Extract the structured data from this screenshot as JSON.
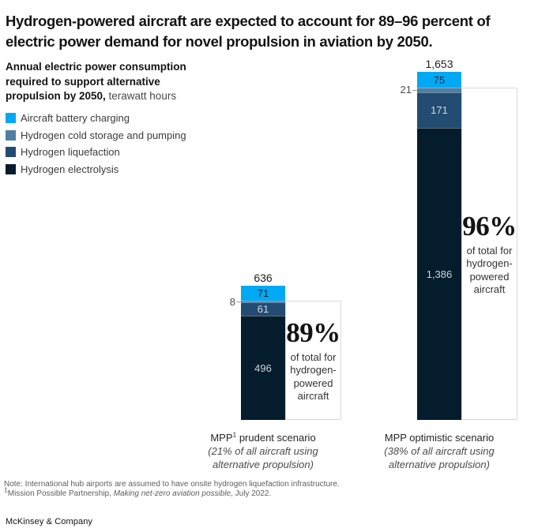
{
  "title_lines": [
    "Hydrogen-powered aircraft are expected to account for 89–96 percent of",
    "electric power demand for novel propulsion in aviation by 2050."
  ],
  "subtitle": {
    "line1": "Annual electric power consumption",
    "line2": "required to support alternative",
    "line3_bold": "propulsion by 2050,",
    "line3_unit": " terawatt hours"
  },
  "legend": [
    {
      "label": "Aircraft battery charging",
      "color": "#00A9F4"
    },
    {
      "label": "Hydrogen cold storage and pumping",
      "color": "#4E7FA7"
    },
    {
      "label": "Hydrogen liquefaction",
      "color": "#234C72"
    },
    {
      "label": "Hydrogen electrolysis",
      "color": "#051C2C"
    }
  ],
  "chart_data": {
    "type": "bar",
    "stacked": true,
    "title": "Annual electric power consumption required to support alternative propulsion by 2050",
    "ylabel": "terawatt hours",
    "categories": [
      "MPP prudent scenario",
      "MPP optimistic scenario"
    ],
    "series": [
      {
        "name": "Aircraft battery charging",
        "values": [
          71,
          75
        ]
      },
      {
        "name": "Hydrogen cold storage and pumping",
        "values": [
          8,
          21
        ]
      },
      {
        "name": "Hydrogen liquefaction",
        "values": [
          61,
          171
        ]
      },
      {
        "name": "Hydrogen electrolysis",
        "values": [
          496,
          1386
        ]
      }
    ],
    "totals": [
      "636",
      "1,653"
    ],
    "callouts": [
      {
        "pct": "89%",
        "caption": "of total for hydrogen-powered aircraft",
        "caption_lines": [
          "of total for",
          "hydrogen-",
          "powered",
          "aircraft"
        ]
      },
      {
        "pct": "96%",
        "caption": "of total for hydrogen-powered aircraft",
        "caption_lines": [
          "of total for",
          "hydrogen-",
          "powered",
          "aircraft"
        ]
      }
    ],
    "legend_position": "top-left",
    "grid": false
  },
  "xaxis": [
    {
      "pre": "MPP",
      "sup": "1",
      "post": " prudent scenario",
      "sub1": "(21% of all aircraft using",
      "sub2": "alternative propulsion)"
    },
    {
      "pre": "MPP optimistic scenario",
      "sup": "",
      "post": "",
      "sub1": "(38% of all aircraft using",
      "sub2": "alternative propulsion)"
    }
  ],
  "footnotes": {
    "note": "Note: International hub airports are assumed to have onsite hydrogen liquefaction infrastructure.",
    "src_sup": "1",
    "src_pre": "Mission Possible Partnership, ",
    "src_italic": "Making net-zero aviation possible",
    "src_post": ", July 2022."
  },
  "source": "McKinsey & Company",
  "colors": {
    "text_dark": "#131313",
    "label_on_cyan": "#0d2638",
    "label_on_dark": "#cdd7de",
    "box_border": "#d9d9d9"
  }
}
